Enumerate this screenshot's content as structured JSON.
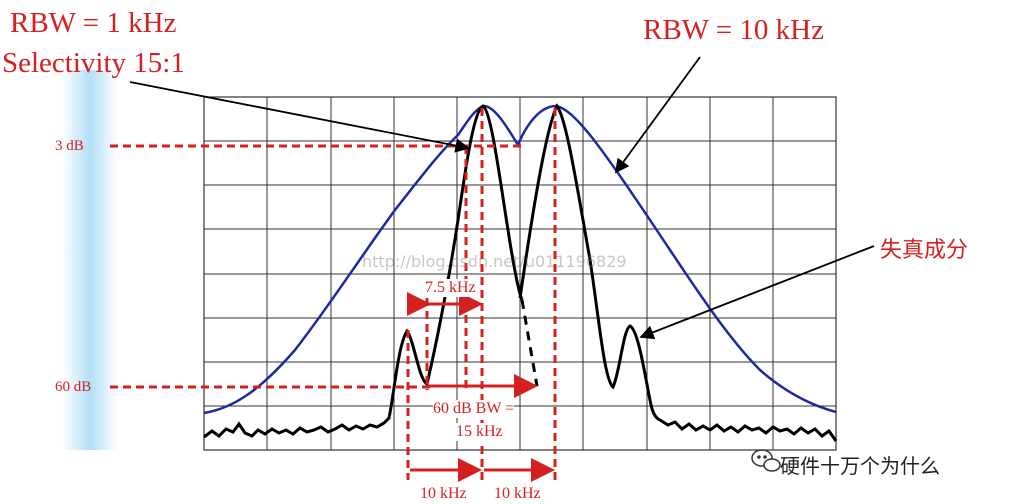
{
  "labels": {
    "rbw_1k": "RBW = 1 kHz",
    "selectivity": "Selectivity 15:1",
    "rbw_10k": "RBW = 10 kHz",
    "distortion": "失真成分",
    "db3": "3 dB",
    "db60": "60 dB",
    "bw75": "7.5 kHz",
    "bw60_line1": "60 dB BW =",
    "bw60_line2": "15 kHz",
    "khz10_a": "10 kHz",
    "khz10_b": "10 kHz",
    "watermark": "硬件十万个为什么",
    "url_watermark": "http://blog.csdn.net/u011196829"
  },
  "colors": {
    "annotation": "#d42020",
    "blue_trace": "#1f2a9c",
    "black_trace": "#000000",
    "grid": "#333333"
  },
  "icons": {
    "watermark_logo": "wechat-bubble-icon"
  }
}
